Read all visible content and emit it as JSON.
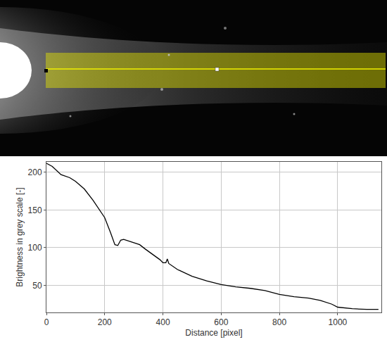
{
  "chart_data": {
    "type": "line",
    "x_label": "Distance [pixel]",
    "y_label": "Brightness in grey scale [-]",
    "x": [
      0,
      20,
      50,
      80,
      100,
      130,
      160,
      200,
      220,
      235,
      245,
      255,
      265,
      280,
      300,
      320,
      340,
      370,
      390,
      400,
      410,
      415,
      420,
      450,
      500,
      550,
      600,
      650,
      700,
      750,
      800,
      850,
      900,
      940,
      980,
      1000,
      1050,
      1100,
      1140
    ],
    "values": [
      212,
      208,
      197,
      193,
      188,
      178,
      163,
      140,
      120,
      104,
      103,
      110,
      111,
      109,
      107,
      104,
      98,
      90,
      84,
      80,
      80,
      85,
      79,
      71,
      62,
      56,
      51,
      48,
      46,
      43,
      38,
      35,
      33,
      30,
      25,
      21,
      19,
      18,
      18
    ],
    "color": "#000000",
    "xlim": [
      0,
      1150
    ],
    "ylim": [
      14,
      214
    ],
    "xticks": [
      0,
      200,
      400,
      600,
      800,
      1000
    ],
    "yticks": [
      50,
      100,
      150,
      200
    ],
    "grid": true
  }
}
